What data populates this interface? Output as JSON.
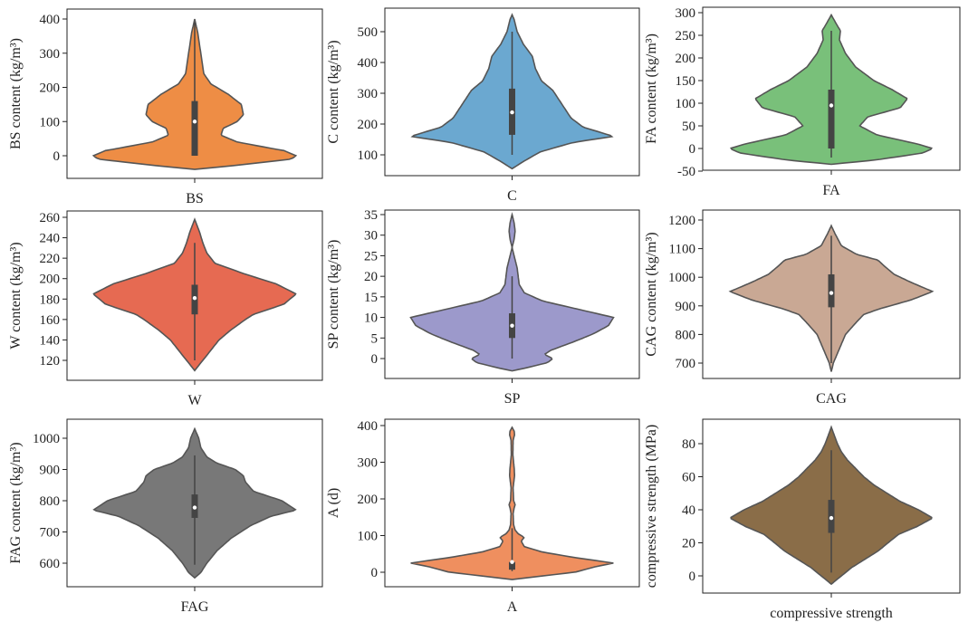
{
  "chart_data": [
    {
      "type": "violin",
      "xlabel": "BS",
      "ylabel": "BS content (kg/m³)",
      "ylim": [
        -40,
        410
      ],
      "yticks": [
        0,
        100,
        200,
        300,
        400
      ],
      "color": "#ee8d45",
      "distribution": {
        "min": 0,
        "q1": 0,
        "median": 100,
        "q3": 160,
        "max": 390
      },
      "profile": [
        [
          -40,
          0.0
        ],
        [
          -30,
          0.35
        ],
        [
          -10,
          0.95
        ],
        [
          0,
          1.0
        ],
        [
          15,
          0.88
        ],
        [
          40,
          0.42
        ],
        [
          60,
          0.26
        ],
        [
          80,
          0.28
        ],
        [
          100,
          0.42
        ],
        [
          120,
          0.48
        ],
        [
          150,
          0.46
        ],
        [
          180,
          0.33
        ],
        [
          210,
          0.16
        ],
        [
          240,
          0.09
        ],
        [
          280,
          0.07
        ],
        [
          320,
          0.05
        ],
        [
          360,
          0.03
        ],
        [
          400,
          0.0
        ]
      ]
    },
    {
      "type": "violin",
      "xlabel": "C",
      "ylabel": "C content (kg/m³)",
      "ylim": [
        55,
        560
      ],
      "yticks": [
        100,
        200,
        300,
        400,
        500
      ],
      "color": "#6ba8d0",
      "distribution": {
        "min": 100,
        "q1": 165,
        "median": 238,
        "q3": 315,
        "max": 500
      },
      "profile": [
        [
          55,
          0.0
        ],
        [
          80,
          0.12
        ],
        [
          110,
          0.28
        ],
        [
          140,
          0.6
        ],
        [
          160,
          1.0
        ],
        [
          190,
          0.7
        ],
        [
          220,
          0.58
        ],
        [
          250,
          0.52
        ],
        [
          280,
          0.46
        ],
        [
          310,
          0.4
        ],
        [
          340,
          0.29
        ],
        [
          380,
          0.23
        ],
        [
          420,
          0.2
        ],
        [
          460,
          0.11
        ],
        [
          500,
          0.05
        ],
        [
          540,
          0.02
        ],
        [
          555,
          0.0
        ]
      ]
    },
    {
      "type": "violin",
      "xlabel": "FA",
      "ylabel": "FA content (kg/m³)",
      "ylim": [
        -50,
        305
      ],
      "yticks": [
        -50,
        0,
        50,
        100,
        150,
        200,
        250,
        300
      ],
      "color": "#79c07a",
      "distribution": {
        "min": -20,
        "q1": 0,
        "median": 95,
        "q3": 130,
        "max": 260
      },
      "profile": [
        [
          -35,
          0.0
        ],
        [
          -25,
          0.45
        ],
        [
          -10,
          0.9
        ],
        [
          0,
          1.0
        ],
        [
          10,
          0.85
        ],
        [
          30,
          0.45
        ],
        [
          50,
          0.28
        ],
        [
          70,
          0.36
        ],
        [
          90,
          0.68
        ],
        [
          110,
          0.75
        ],
        [
          130,
          0.6
        ],
        [
          150,
          0.42
        ],
        [
          180,
          0.24
        ],
        [
          210,
          0.14
        ],
        [
          240,
          0.08
        ],
        [
          260,
          0.09
        ],
        [
          275,
          0.05
        ],
        [
          295,
          0.0
        ]
      ]
    },
    {
      "type": "violin",
      "xlabel": "W",
      "ylabel": "W content (kg/m³)",
      "ylim": [
        110,
        260
      ],
      "yticks": [
        120,
        140,
        160,
        180,
        200,
        220,
        240,
        260
      ],
      "color": "#e66a52",
      "distribution": {
        "min": 120,
        "q1": 165,
        "median": 181,
        "q3": 194,
        "max": 235
      },
      "profile": [
        [
          110,
          0.0
        ],
        [
          120,
          0.08
        ],
        [
          130,
          0.16
        ],
        [
          140,
          0.24
        ],
        [
          150,
          0.36
        ],
        [
          160,
          0.5
        ],
        [
          165,
          0.58
        ],
        [
          175,
          0.88
        ],
        [
          185,
          1.0
        ],
        [
          195,
          0.8
        ],
        [
          205,
          0.48
        ],
        [
          215,
          0.2
        ],
        [
          225,
          0.12
        ],
        [
          235,
          0.08
        ],
        [
          245,
          0.05
        ],
        [
          258,
          0.0
        ]
      ]
    },
    {
      "type": "violin",
      "xlabel": "SP",
      "ylabel": "SP content (kg/m³)",
      "ylim": [
        -3,
        35
      ],
      "yticks": [
        0,
        5,
        10,
        15,
        20,
        25,
        30,
        35
      ],
      "color": "#9c99cb",
      "distribution": {
        "min": 0,
        "q1": 5,
        "median": 8,
        "q3": 11,
        "max": 20
      },
      "profile": [
        [
          -3,
          0.0
        ],
        [
          -2.2,
          0.15
        ],
        [
          -1,
          0.35
        ],
        [
          0,
          0.4
        ],
        [
          1,
          0.32
        ],
        [
          2,
          0.38
        ],
        [
          4,
          0.6
        ],
        [
          6,
          0.8
        ],
        [
          8,
          0.95
        ],
        [
          10,
          1.0
        ],
        [
          12,
          0.65
        ],
        [
          14,
          0.3
        ],
        [
          16,
          0.12
        ],
        [
          18,
          0.07
        ],
        [
          20,
          0.06
        ],
        [
          22,
          0.05
        ],
        [
          23,
          0.04
        ],
        [
          25,
          0.02
        ],
        [
          27,
          0.0
        ],
        [
          29,
          0.02
        ],
        [
          31,
          0.03
        ],
        [
          33,
          0.02
        ],
        [
          35,
          0.0
        ]
      ]
    },
    {
      "type": "violin",
      "xlabel": "CAG",
      "ylabel": "CAG content (kg/m³)",
      "ylim": [
        670,
        1190
      ],
      "yticks": [
        700,
        800,
        900,
        1000,
        1100,
        1200
      ],
      "color": "#c9a894",
      "distribution": {
        "min": 700,
        "q1": 895,
        "median": 945,
        "q3": 1010,
        "max": 1145
      },
      "profile": [
        [
          670,
          0.0
        ],
        [
          700,
          0.02
        ],
        [
          750,
          0.08
        ],
        [
          800,
          0.14
        ],
        [
          840,
          0.24
        ],
        [
          870,
          0.32
        ],
        [
          890,
          0.48
        ],
        [
          920,
          0.78
        ],
        [
          950,
          1.0
        ],
        [
          980,
          0.8
        ],
        [
          1010,
          0.62
        ],
        [
          1040,
          0.52
        ],
        [
          1060,
          0.46
        ],
        [
          1080,
          0.25
        ],
        [
          1110,
          0.1
        ],
        [
          1150,
          0.04
        ],
        [
          1180,
          0.0
        ]
      ]
    },
    {
      "type": "violin",
      "xlabel": "FAG",
      "ylabel": "FAG content (kg/m³)",
      "ylim": [
        550,
        1035
      ],
      "yticks": [
        600,
        700,
        800,
        900,
        1000
      ],
      "color": "#787878",
      "distribution": {
        "min": 595,
        "q1": 745,
        "median": 778,
        "q3": 820,
        "max": 945
      },
      "profile": [
        [
          553,
          0.0
        ],
        [
          570,
          0.06
        ],
        [
          600,
          0.12
        ],
        [
          640,
          0.22
        ],
        [
          680,
          0.36
        ],
        [
          720,
          0.55
        ],
        [
          750,
          0.75
        ],
        [
          770,
          1.0
        ],
        [
          800,
          0.86
        ],
        [
          830,
          0.58
        ],
        [
          860,
          0.5
        ],
        [
          880,
          0.48
        ],
        [
          900,
          0.4
        ],
        [
          920,
          0.22
        ],
        [
          940,
          0.12
        ],
        [
          970,
          0.06
        ],
        [
          1000,
          0.04
        ],
        [
          1030,
          0.0
        ]
      ]
    },
    {
      "type": "violin",
      "xlabel": "A",
      "ylabel": "A (d)",
      "ylim": [
        -20,
        400
      ],
      "yticks": [
        0,
        100,
        200,
        300,
        400
      ],
      "color": "#ef8f5f",
      "distribution": {
        "min": 3,
        "q1": 7,
        "median": 28,
        "q3": 28,
        "max": 120
      },
      "profile": [
        [
          -20,
          0.0
        ],
        [
          -10,
          0.3
        ],
        [
          0,
          0.62
        ],
        [
          15,
          0.82
        ],
        [
          25,
          1.0
        ],
        [
          40,
          0.62
        ],
        [
          55,
          0.3
        ],
        [
          70,
          0.12
        ],
        [
          85,
          0.09
        ],
        [
          95,
          0.12
        ],
        [
          105,
          0.06
        ],
        [
          115,
          0.03
        ],
        [
          130,
          0.015
        ],
        [
          160,
          0.01
        ],
        [
          175,
          0.02
        ],
        [
          185,
          0.03
        ],
        [
          195,
          0.015
        ],
        [
          230,
          0.01
        ],
        [
          265,
          0.025
        ],
        [
          285,
          0.02
        ],
        [
          320,
          0.008
        ],
        [
          360,
          0.01
        ],
        [
          375,
          0.025
        ],
        [
          385,
          0.02
        ],
        [
          395,
          0.0
        ]
      ]
    },
    {
      "type": "violin",
      "xlabel": "compressive strength",
      "ylabel": "compressive strength (MPa)",
      "ylim": [
        -5,
        90
      ],
      "yticks": [
        0,
        20,
        40,
        60,
        80
      ],
      "color": "#8a6d48",
      "distribution": {
        "min": 2,
        "q1": 26,
        "median": 35,
        "q3": 46,
        "max": 76
      },
      "profile": [
        [
          -5,
          0.0
        ],
        [
          0,
          0.1
        ],
        [
          5,
          0.2
        ],
        [
          10,
          0.33
        ],
        [
          15,
          0.46
        ],
        [
          20,
          0.56
        ],
        [
          25,
          0.66
        ],
        [
          30,
          0.85
        ],
        [
          35,
          1.0
        ],
        [
          40,
          0.86
        ],
        [
          45,
          0.68
        ],
        [
          50,
          0.55
        ],
        [
          55,
          0.42
        ],
        [
          60,
          0.32
        ],
        [
          65,
          0.24
        ],
        [
          70,
          0.16
        ],
        [
          75,
          0.1
        ],
        [
          80,
          0.06
        ],
        [
          85,
          0.03
        ],
        [
          90,
          0.0
        ]
      ]
    }
  ]
}
